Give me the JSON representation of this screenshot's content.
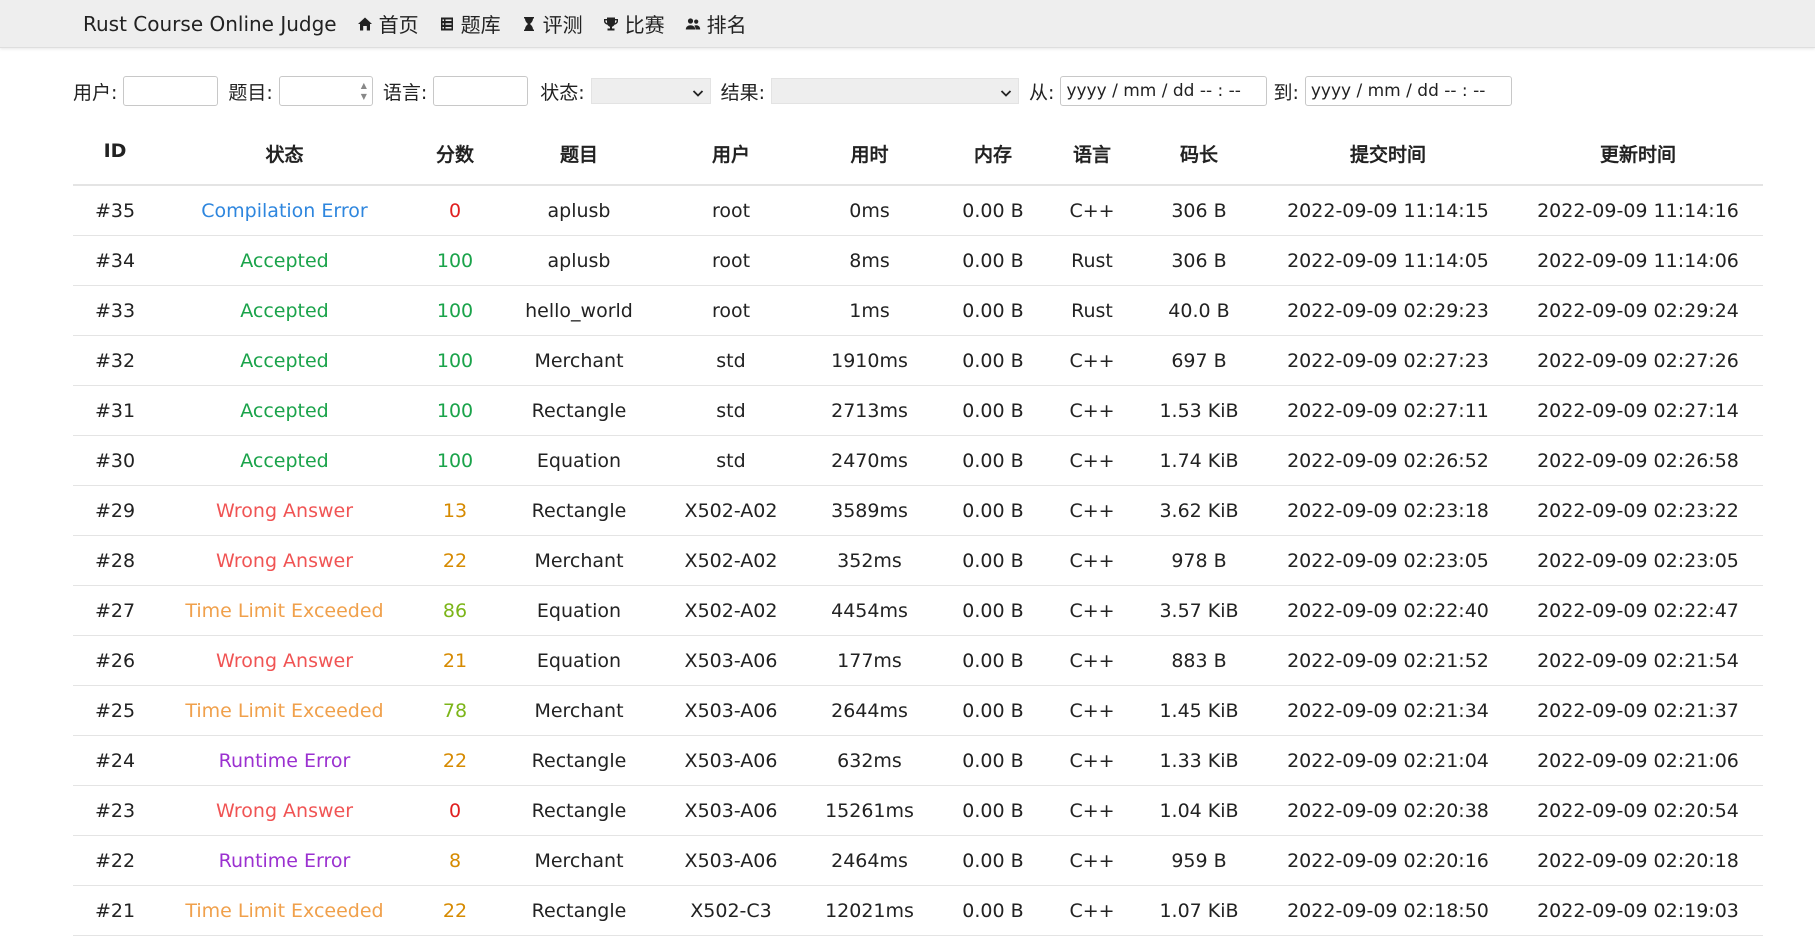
{
  "navbar": {
    "brand": "Rust Course Online Judge",
    "items": [
      {
        "label": "首页",
        "icon": "home-icon"
      },
      {
        "label": "题库",
        "icon": "list-icon"
      },
      {
        "label": "评测",
        "icon": "hourglass-icon"
      },
      {
        "label": "比赛",
        "icon": "trophy-icon"
      },
      {
        "label": "排名",
        "icon": "users-icon"
      }
    ]
  },
  "filters": {
    "user_label": "用户:",
    "problem_label": "题目:",
    "language_label": "语言:",
    "state_label": "状态:",
    "result_label": "结果:",
    "from_label": "从:",
    "to_label": "到:",
    "from_placeholder": "yyyy / mm / dd  -- : --",
    "to_placeholder": "yyyy / mm / dd  -- : --"
  },
  "table": {
    "headers": [
      "ID",
      "状态",
      "分数",
      "题目",
      "用户",
      "用时",
      "内存",
      "语言",
      "码长",
      "提交时间",
      "更新时间"
    ],
    "rows": [
      {
        "id": "#35",
        "status": "Compilation Error",
        "score": "0",
        "problem": "aplusb",
        "user": "root",
        "time": "0ms",
        "memory": "0.00 B",
        "lang": "C++",
        "length": "306 B",
        "submitted": "2022-09-09 11:14:15",
        "updated": "2022-09-09 11:14:16",
        "status_color": "#2e86de",
        "score_color": "#e02020"
      },
      {
        "id": "#34",
        "status": "Accepted",
        "score": "100",
        "problem": "aplusb",
        "user": "root",
        "time": "8ms",
        "memory": "0.00 B",
        "lang": "Rust",
        "length": "306 B",
        "submitted": "2022-09-09 11:14:05",
        "updated": "2022-09-09 11:14:06",
        "status_color": "#1aa34a",
        "score_color": "#1aa34a"
      },
      {
        "id": "#33",
        "status": "Accepted",
        "score": "100",
        "problem": "hello_world",
        "user": "root",
        "time": "1ms",
        "memory": "0.00 B",
        "lang": "Rust",
        "length": "40.0 B",
        "submitted": "2022-09-09 02:29:23",
        "updated": "2022-09-09 02:29:24",
        "status_color": "#1aa34a",
        "score_color": "#1aa34a"
      },
      {
        "id": "#32",
        "status": "Accepted",
        "score": "100",
        "problem": "Merchant",
        "user": "std",
        "time": "1910ms",
        "memory": "0.00 B",
        "lang": "C++",
        "length": "697 B",
        "submitted": "2022-09-09 02:27:23",
        "updated": "2022-09-09 02:27:26",
        "status_color": "#1aa34a",
        "score_color": "#1aa34a"
      },
      {
        "id": "#31",
        "status": "Accepted",
        "score": "100",
        "problem": "Rectangle",
        "user": "std",
        "time": "2713ms",
        "memory": "0.00 B",
        "lang": "C++",
        "length": "1.53 KiB",
        "submitted": "2022-09-09 02:27:11",
        "updated": "2022-09-09 02:27:14",
        "status_color": "#1aa34a",
        "score_color": "#1aa34a"
      },
      {
        "id": "#30",
        "status": "Accepted",
        "score": "100",
        "problem": "Equation",
        "user": "std",
        "time": "2470ms",
        "memory": "0.00 B",
        "lang": "C++",
        "length": "1.74 KiB",
        "submitted": "2022-09-09 02:26:52",
        "updated": "2022-09-09 02:26:58",
        "status_color": "#1aa34a",
        "score_color": "#1aa34a"
      },
      {
        "id": "#29",
        "status": "Wrong Answer",
        "score": "13",
        "problem": "Rectangle",
        "user": "X502-A02",
        "time": "3589ms",
        "memory": "0.00 B",
        "lang": "C++",
        "length": "3.62 KiB",
        "submitted": "2022-09-09 02:23:18",
        "updated": "2022-09-09 02:23:22",
        "status_color": "#f05454",
        "score_color": "#d68a00"
      },
      {
        "id": "#28",
        "status": "Wrong Answer",
        "score": "22",
        "problem": "Merchant",
        "user": "X502-A02",
        "time": "352ms",
        "memory": "0.00 B",
        "lang": "C++",
        "length": "978 B",
        "submitted": "2022-09-09 02:23:05",
        "updated": "2022-09-09 02:23:05",
        "status_color": "#f05454",
        "score_color": "#d68a00"
      },
      {
        "id": "#27",
        "status": "Time Limit Exceeded",
        "score": "86",
        "problem": "Equation",
        "user": "X502-A02",
        "time": "4454ms",
        "memory": "0.00 B",
        "lang": "C++",
        "length": "3.57 KiB",
        "submitted": "2022-09-09 02:22:40",
        "updated": "2022-09-09 02:22:47",
        "status_color": "#f0a04b",
        "score_color": "#7cb518"
      },
      {
        "id": "#26",
        "status": "Wrong Answer",
        "score": "21",
        "problem": "Equation",
        "user": "X503-A06",
        "time": "177ms",
        "memory": "0.00 B",
        "lang": "C++",
        "length": "883 B",
        "submitted": "2022-09-09 02:21:52",
        "updated": "2022-09-09 02:21:54",
        "status_color": "#f05454",
        "score_color": "#d68a00"
      },
      {
        "id": "#25",
        "status": "Time Limit Exceeded",
        "score": "78",
        "problem": "Merchant",
        "user": "X503-A06",
        "time": "2644ms",
        "memory": "0.00 B",
        "lang": "C++",
        "length": "1.45 KiB",
        "submitted": "2022-09-09 02:21:34",
        "updated": "2022-09-09 02:21:37",
        "status_color": "#f0a04b",
        "score_color": "#7cb518"
      },
      {
        "id": "#24",
        "status": "Runtime Error",
        "score": "22",
        "problem": "Rectangle",
        "user": "X503-A06",
        "time": "632ms",
        "memory": "0.00 B",
        "lang": "C++",
        "length": "1.33 KiB",
        "submitted": "2022-09-09 02:21:04",
        "updated": "2022-09-09 02:21:06",
        "status_color": "#9b30d0",
        "score_color": "#d68a00"
      },
      {
        "id": "#23",
        "status": "Wrong Answer",
        "score": "0",
        "problem": "Rectangle",
        "user": "X503-A06",
        "time": "15261ms",
        "memory": "0.00 B",
        "lang": "C++",
        "length": "1.04 KiB",
        "submitted": "2022-09-09 02:20:38",
        "updated": "2022-09-09 02:20:54",
        "status_color": "#f05454",
        "score_color": "#e02020"
      },
      {
        "id": "#22",
        "status": "Runtime Error",
        "score": "8",
        "problem": "Merchant",
        "user": "X503-A06",
        "time": "2464ms",
        "memory": "0.00 B",
        "lang": "C++",
        "length": "959 B",
        "submitted": "2022-09-09 02:20:16",
        "updated": "2022-09-09 02:20:18",
        "status_color": "#9b30d0",
        "score_color": "#d68a00"
      },
      {
        "id": "#21",
        "status": "Time Limit Exceeded",
        "score": "22",
        "problem": "Rectangle",
        "user": "X502-C3",
        "time": "12021ms",
        "memory": "0.00 B",
        "lang": "C++",
        "length": "1.07 KiB",
        "submitted": "2022-09-09 02:18:50",
        "updated": "2022-09-09 02:19:03",
        "status_color": "#f0a04b",
        "score_color": "#d68a00"
      }
    ]
  }
}
